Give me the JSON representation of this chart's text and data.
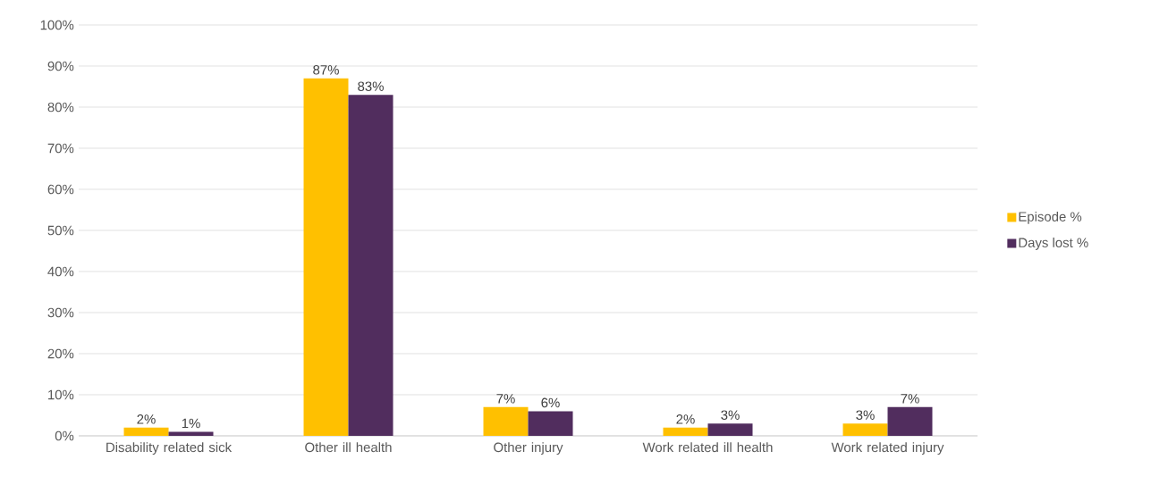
{
  "chart_data": {
    "type": "bar",
    "categories": [
      "Disability related sick",
      "Other ill health",
      "Other injury",
      "Work related ill health",
      "Work related injury"
    ],
    "series": [
      {
        "name": "Episode %",
        "color": "#ffc000",
        "values": [
          2,
          87,
          7,
          2,
          3
        ],
        "value_labels": [
          "2%",
          "87%",
          "7%",
          "2%",
          "3%"
        ]
      },
      {
        "name": "Days lost %",
        "color": "#512d5e",
        "values": [
          1,
          83,
          6,
          3,
          7
        ],
        "value_labels": [
          "1%",
          "83%",
          "6%",
          "3%",
          "7%"
        ]
      }
    ],
    "ylim": [
      0,
      100
    ],
    "yticks": [
      {
        "value": 0,
        "label": "0%"
      },
      {
        "value": 10,
        "label": "10%"
      },
      {
        "value": 20,
        "label": "20%"
      },
      {
        "value": 30,
        "label": "30%"
      },
      {
        "value": 40,
        "label": "40%"
      },
      {
        "value": 50,
        "label": "50%"
      },
      {
        "value": 60,
        "label": "60%"
      },
      {
        "value": 70,
        "label": "70%"
      },
      {
        "value": 80,
        "label": "80%"
      },
      {
        "value": 90,
        "label": "90%"
      },
      {
        "value": 100,
        "label": "100%"
      }
    ],
    "grid": "y",
    "legend": "right"
  }
}
